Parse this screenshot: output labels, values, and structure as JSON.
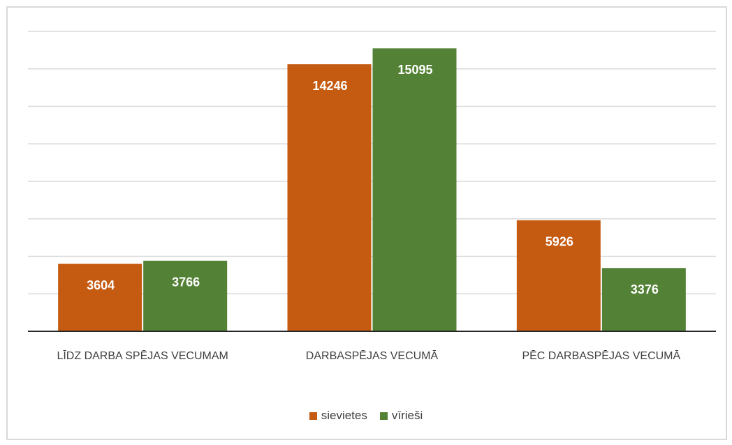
{
  "chart_data": {
    "type": "bar",
    "categories": [
      "LĪDZ DARBA SPĒJAS VECUMAM",
      "DARBASPĒJAS VECUMĀ",
      "PĒC DARBASPĒJAS VECUMĀ"
    ],
    "series": [
      {
        "name": "sievietes",
        "color": "#c55a11",
        "values": [
          3604,
          14246,
          5926
        ]
      },
      {
        "name": "vīrieši",
        "color": "#538135",
        "values": [
          3766,
          15095,
          3376
        ]
      }
    ],
    "ylim": [
      0,
      16000
    ],
    "yticks": [
      0,
      2000,
      4000,
      6000,
      8000,
      10000,
      12000,
      14000,
      16000
    ],
    "grid": true,
    "legend": "bottom"
  }
}
